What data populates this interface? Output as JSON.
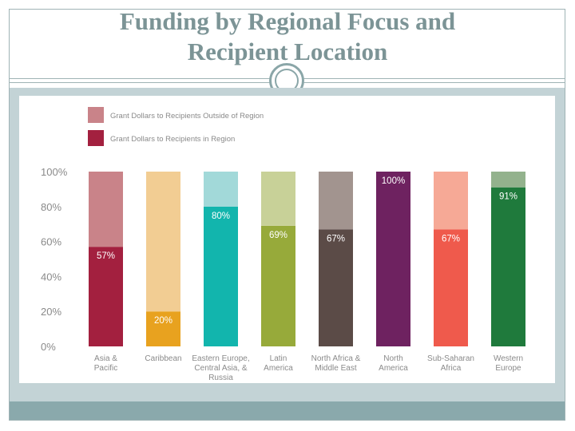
{
  "slide": {
    "title_line1": "Funding by Regional Focus and",
    "title_line2": "Recipient Location"
  },
  "colors": {
    "frame": "#9fb3b5",
    "title": "#7c9496",
    "band": "#c3d3d6",
    "footer": "#8aa9ac"
  },
  "chart_data": {
    "type": "bar",
    "stacked": true,
    "categories": [
      [
        "Asia &",
        "Pacific"
      ],
      [
        "Caribbean"
      ],
      [
        "Eastern Europe,",
        "Central Asia, &",
        "Russia"
      ],
      [
        "Latin",
        "America"
      ],
      [
        "North Africa &",
        "Middle East"
      ],
      [
        "North",
        "America"
      ],
      [
        "Sub-Saharan",
        "Africa"
      ],
      [
        "Western",
        "Europe"
      ]
    ],
    "series": [
      {
        "name": "Grant Dollars to Recipients in Region",
        "values": [
          57,
          20,
          80,
          69,
          67,
          100,
          67,
          91
        ],
        "labels": [
          "57%",
          "20%",
          "80%",
          "69%",
          "67%",
          "100%",
          "67%",
          "91%"
        ],
        "colors": [
          "#a3203f",
          "#e8a21f",
          "#12b5ad",
          "#97aa3a",
          "#5b4b47",
          "#6e2260",
          "#ef5a4c",
          "#1f7a3c"
        ]
      },
      {
        "name": "Grant Dollars to Recipients Outside of Region",
        "values": [
          43,
          80,
          20,
          31,
          33,
          0,
          33,
          9
        ],
        "colors": [
          "#c98389",
          "#f2cd93",
          "#a2d9d9",
          "#c8d198",
          "#a2948f",
          "#a98aa3",
          "#f6a996",
          "#93b28d"
        ]
      }
    ],
    "legend_swatches": [
      "#c98389",
      "#a3203f"
    ],
    "legend_position": "top-left",
    "ylim": [
      0,
      100
    ],
    "yticks": [
      "0%",
      "20%",
      "40%",
      "60%",
      "80%",
      "100%"
    ],
    "ytick_values": [
      0,
      20,
      40,
      60,
      80,
      100
    ],
    "grid": false
  }
}
